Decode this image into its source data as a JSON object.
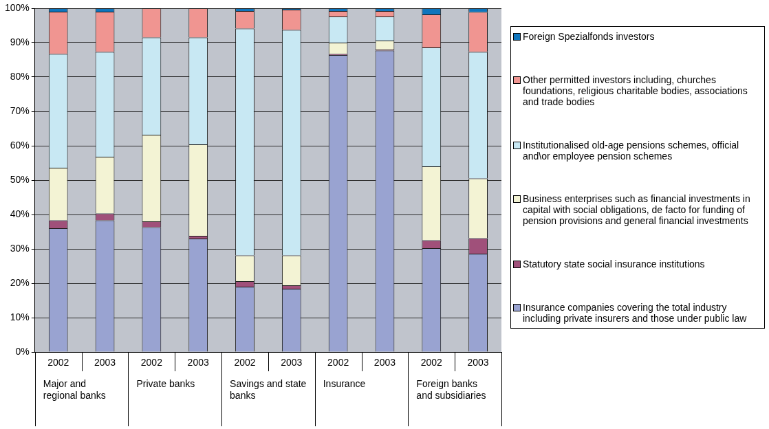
{
  "chart_data": {
    "type": "bar",
    "stacked": true,
    "categories": [
      "2002",
      "2003",
      "2002",
      "2003",
      "2002",
      "2003",
      "2002",
      "2003",
      "2002",
      "2003"
    ],
    "annotations": [
      "Major and regional banks",
      "Private banks",
      "Savings and state banks",
      "Insurance",
      "Foreign banks and subsidiaries"
    ],
    "series": [
      {
        "name": "Insurance companies covering the total industry including private insurers and those under public law",
        "color": "#99a3d1",
        "values": [
          36,
          38.3,
          36.3,
          33,
          19,
          18.4,
          86.4,
          87.7,
          30.2,
          28.6
        ]
      },
      {
        "name": "Statutory state social insurance institutions",
        "color": "#a0507a",
        "values": [
          2.3,
          2,
          1.7,
          0.8,
          1.6,
          1,
          0.3,
          0.3,
          2.3,
          4.5
        ]
      },
      {
        "name": "Business enterprises such as financial investments in capital with social obligations, de facto for funding of pension provisions and general financial investments",
        "color": "#f3f3d4",
        "values": [
          15.3,
          16.5,
          25.2,
          26.6,
          7.5,
          8.7,
          3.3,
          2.6,
          21.5,
          17.4
        ]
      },
      {
        "name": "Institutionalised old-age pensions schemes, official and\\or employee pension schemes",
        "color": "#c8e8f3",
        "values": [
          33.1,
          30.5,
          28.3,
          31.1,
          66,
          65.6,
          7.6,
          7,
          34.6,
          36.8
        ]
      },
      {
        "name": "Other permitted investors including, churches foundations, religious charitable bodies, associations and trade bodies",
        "color": "#f09591",
        "values": [
          12.3,
          11.7,
          8.5,
          8.5,
          5.1,
          5.9,
          1.6,
          1.6,
          9.6,
          11.6
        ]
      },
      {
        "name": "Foreign Spezialfonds investors",
        "color": "#0e75bd",
        "values": [
          1,
          1,
          0,
          0,
          0.8,
          0.4,
          0.8,
          0.8,
          1.8,
          1.1
        ]
      }
    ],
    "ylim": [
      0,
      100
    ],
    "yticks": [
      {
        "value": 0,
        "label": "0%"
      },
      {
        "value": 10,
        "label": "10%"
      },
      {
        "value": 20,
        "label": "20%"
      },
      {
        "value": 30,
        "label": "30%"
      },
      {
        "value": 40,
        "label": "40%"
      },
      {
        "value": 50,
        "label": "50%"
      },
      {
        "value": 60,
        "label": "60%"
      },
      {
        "value": 70,
        "label": "70%"
      },
      {
        "value": 80,
        "label": "80%"
      },
      {
        "value": 90,
        "label": "90%"
      },
      {
        "value": 100,
        "label": "100%"
      }
    ],
    "grid": "y",
    "legend": "right"
  }
}
